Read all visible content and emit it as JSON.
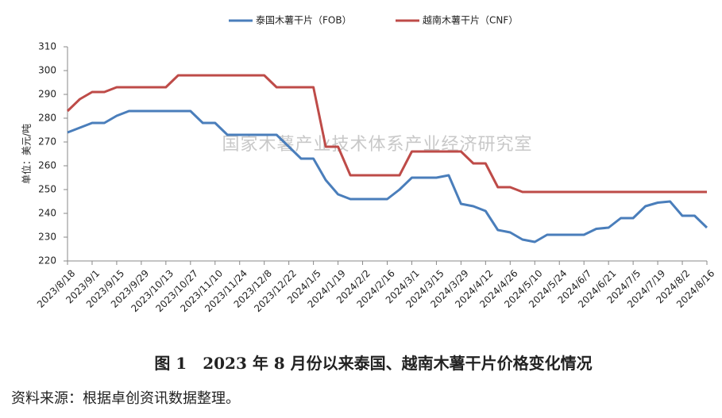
{
  "chart_data": {
    "type": "line",
    "title": "图 1　2023 年 8 月份以来泰国、越南木薯干片价格变化情况",
    "source": "资料来源：根据卓创资讯数据整理。",
    "y_label": "单位：美元/吨",
    "watermark": "国家木薯产业技术体系产业经济研究室",
    "categories": [
      "2023/8/18",
      null,
      "2023/9/1",
      null,
      "2023/9/15",
      null,
      "2023/9/29",
      null,
      "2023/10/13",
      null,
      "2023/10/27",
      null,
      "2023/11/10",
      null,
      "2023/11/24",
      null,
      "2023/12/8",
      null,
      "2023/12/22",
      null,
      "2024/1/5",
      null,
      "2024/1/19",
      null,
      "2024/2/2",
      null,
      "2024/2/16",
      null,
      "2024/3/1",
      null,
      "2024/3/15",
      null,
      "2024/3/29",
      null,
      "2024/4/12",
      null,
      "2024/4/26",
      null,
      "2024/5/10",
      null,
      "2024/5/24",
      null,
      "2024/6/7",
      null,
      "2024/6/21",
      null,
      "2024/7/5",
      null,
      "2024/7/19",
      null,
      "2024/8/2",
      null,
      "2024/8/16"
    ],
    "series": [
      {
        "name": "泰国木薯干片（FOB）",
        "color": "#4a7ebb",
        "values": [
          274,
          276,
          278,
          278,
          281,
          283,
          283,
          283,
          283,
          283,
          283,
          278,
          278,
          273,
          273,
          273,
          273,
          273,
          268,
          263,
          263,
          254,
          248,
          246,
          246,
          246,
          246,
          250,
          255,
          255,
          255,
          256,
          244,
          243,
          241,
          233,
          232,
          229,
          228,
          231,
          231,
          231,
          231,
          233.5,
          234,
          238,
          238,
          243,
          244.5,
          245,
          239,
          239,
          234
        ]
      },
      {
        "name": "越南木薯干片（CNF）",
        "color": "#be4b48",
        "values": [
          283,
          288,
          291,
          291,
          293,
          293,
          293,
          293,
          293,
          298,
          298,
          298,
          298,
          298,
          298,
          298,
          298,
          293,
          293,
          293,
          293,
          268,
          268,
          256,
          256,
          256,
          256,
          256,
          266,
          266,
          266,
          266,
          266,
          261,
          261,
          251,
          251,
          249,
          249,
          249,
          249,
          249,
          249,
          249,
          249,
          249,
          249,
          249,
          249,
          249,
          249,
          249,
          249
        ]
      }
    ],
    "ylim": [
      220,
      310
    ],
    "yticks": [
      220,
      230,
      240,
      250,
      260,
      270,
      280,
      290,
      300,
      310
    ],
    "grid": false,
    "legend": "top"
  }
}
